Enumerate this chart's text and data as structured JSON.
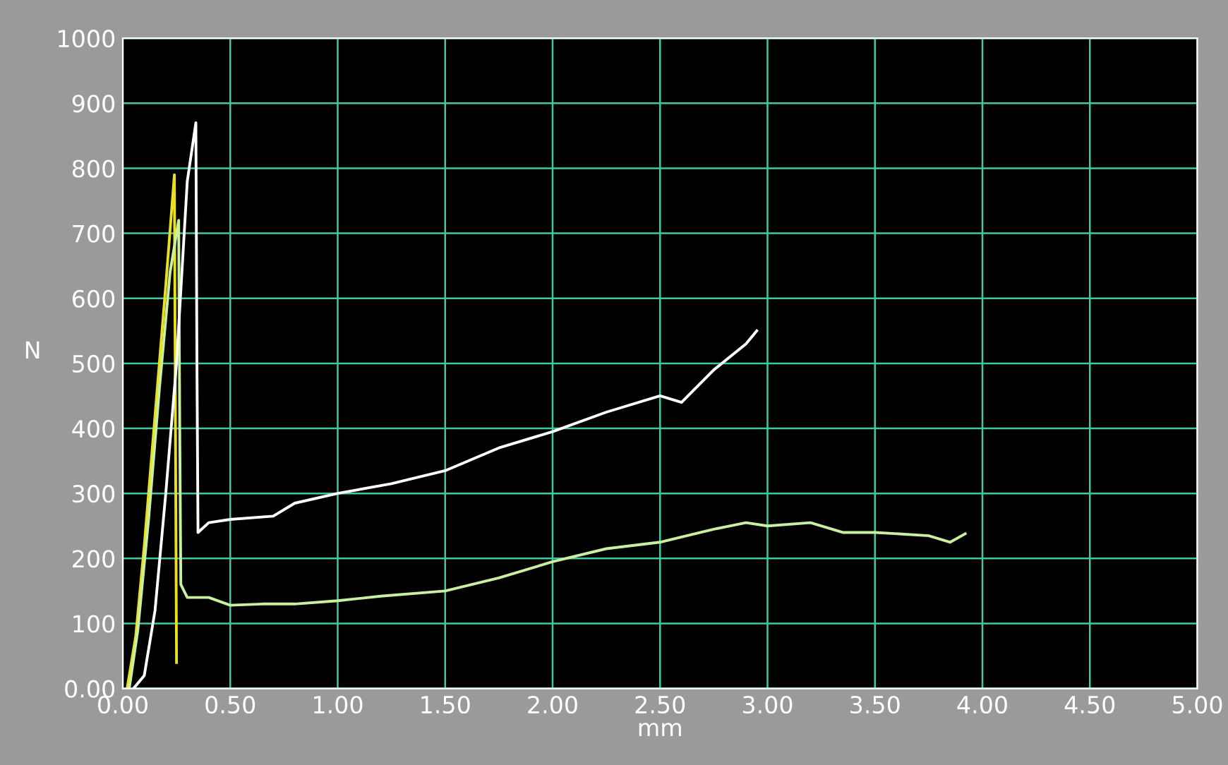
{
  "chart_data": {
    "type": "line",
    "xlabel": "mm",
    "ylabel": "N",
    "xlim": [
      0,
      5
    ],
    "ylim": [
      0,
      1000
    ],
    "xticks": [
      {
        "value": 0,
        "label": "0.00"
      },
      {
        "value": 0.5,
        "label": "0.50"
      },
      {
        "value": 1,
        "label": "1.00"
      },
      {
        "value": 1.5,
        "label": "1.50"
      },
      {
        "value": 2,
        "label": "2.00"
      },
      {
        "value": 2.5,
        "label": "2.50"
      },
      {
        "value": 3,
        "label": "3.00"
      },
      {
        "value": 3.5,
        "label": "3.50"
      },
      {
        "value": 4,
        "label": "4.00"
      },
      {
        "value": 4.5,
        "label": "4.50"
      },
      {
        "value": 5,
        "label": "5.00"
      }
    ],
    "yticks": [
      {
        "value": 0,
        "label": "0.00"
      },
      100,
      200,
      300,
      400,
      500,
      600,
      700,
      800,
      900,
      1000
    ],
    "grid": true,
    "line_style": "solid",
    "marker": "none",
    "series": [
      {
        "color": "#e8e020",
        "x": [
          0.02,
          0.06,
          0.1,
          0.15,
          0.2,
          0.24,
          0.245,
          0.25
        ],
        "values": [
          0,
          80,
          220,
          420,
          620,
          790,
          400,
          40
        ]
      },
      {
        "color": "#c8f0a0",
        "x": [
          0.03,
          0.07,
          0.12,
          0.17,
          0.22,
          0.26,
          0.265,
          0.27,
          0.3,
          0.4,
          0.5,
          0.65,
          0.8,
          1.0,
          1.2,
          1.5,
          1.75,
          2.0,
          2.25,
          2.5,
          2.75,
          2.9,
          3.0,
          3.2,
          3.35,
          3.5,
          3.75,
          3.85,
          3.92
        ],
        "values": [
          0,
          90,
          260,
          460,
          640,
          720,
          400,
          160,
          140,
          140,
          128,
          130,
          130,
          135,
          142,
          150,
          170,
          195,
          215,
          225,
          245,
          255,
          250,
          255,
          240,
          240,
          235,
          225,
          238
        ]
      },
      {
        "color": "#ffffff",
        "x": [
          0.05,
          0.1,
          0.15,
          0.2,
          0.25,
          0.3,
          0.34,
          0.345,
          0.35,
          0.4,
          0.5,
          0.7,
          0.8,
          1.0,
          1.25,
          1.5,
          1.75,
          2.0,
          2.25,
          2.5,
          2.6,
          2.75,
          2.9,
          2.95
        ],
        "values": [
          0,
          20,
          120,
          300,
          500,
          780,
          870,
          500,
          240,
          255,
          260,
          265,
          285,
          300,
          315,
          335,
          370,
          395,
          425,
          450,
          440,
          490,
          530,
          550
        ]
      }
    ]
  }
}
